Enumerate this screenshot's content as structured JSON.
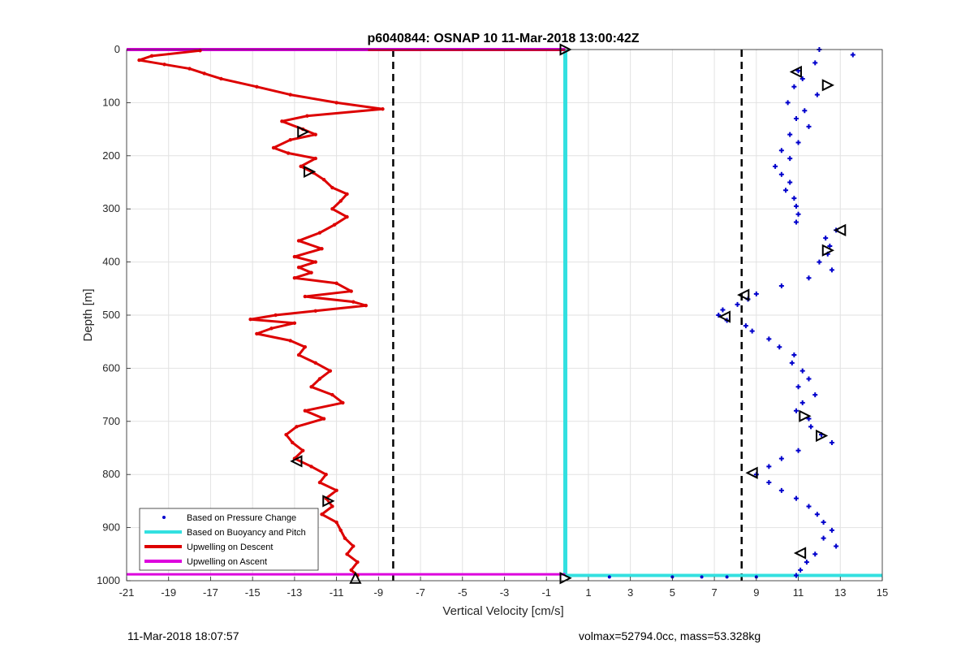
{
  "chart_data": {
    "type": "scatter",
    "title": "p6040844: OSNAP 10 11-Mar-2018 13:00:42Z",
    "xlabel": "Vertical Velocity [cm/s]",
    "ylabel": "Depth [m]",
    "xlim": [
      -21,
      15
    ],
    "ylim": [
      0,
      1000
    ],
    "y_reversed": true,
    "grid": true,
    "xticks": [
      -21,
      -19,
      -17,
      -15,
      -13,
      -11,
      -9,
      -7,
      -5,
      -3,
      -1,
      1,
      3,
      5,
      7,
      9,
      11,
      13,
      15
    ],
    "yticks": [
      0,
      100,
      200,
      300,
      400,
      500,
      600,
      700,
      800,
      900,
      1000
    ],
    "legend_position": "bottom-left",
    "legend": [
      {
        "label": "Based on Pressure Change",
        "color": "#0000cc",
        "style": "dot"
      },
      {
        "label": "Based on Buoyancy and Pitch",
        "color": "#33e0e0",
        "style": "line"
      },
      {
        "label": "Upwelling on Descent",
        "color": "#dd0000",
        "style": "line"
      },
      {
        "label": "Upwelling on Ascent",
        "color": "#dd00dd",
        "style": "line"
      }
    ],
    "reference_lines": [
      {
        "x": -8.3,
        "style": "dashed",
        "color": "#000000"
      },
      {
        "x": 8.3,
        "style": "dashed",
        "color": "#000000"
      }
    ],
    "series": [
      {
        "name": "Upwelling on Descent",
        "color": "#dd0000",
        "depth": [
          2,
          12,
          20,
          28,
          36,
          45,
          55,
          70,
          85,
          100,
          112,
          125,
          135,
          150,
          160,
          170,
          185,
          195,
          205,
          220,
          232,
          245,
          260,
          272,
          285,
          300,
          315,
          330,
          345,
          360,
          375,
          390,
          400,
          410,
          420,
          430,
          440,
          455,
          465,
          475,
          482,
          492,
          500,
          508,
          515,
          525,
          535,
          548,
          560,
          575,
          590,
          605,
          620,
          635,
          650,
          665,
          680,
          695,
          710,
          725,
          740,
          755,
          770,
          785,
          800,
          815,
          830,
          845,
          860,
          875,
          890,
          905,
          920,
          935,
          950,
          965,
          980,
          990
        ],
        "velocity": [
          -17.5,
          -19.8,
          -20.4,
          -19.2,
          -18.0,
          -17.3,
          -16.5,
          -14.8,
          -13.2,
          -11.0,
          -8.8,
          -12.4,
          -13.6,
          -12.6,
          -12.0,
          -13.2,
          -14.0,
          -13.3,
          -12.0,
          -12.7,
          -12.1,
          -11.6,
          -11.2,
          -10.5,
          -10.8,
          -11.2,
          -10.5,
          -11.1,
          -11.8,
          -12.8,
          -11.7,
          -13.0,
          -12.0,
          -12.8,
          -12.2,
          -13.0,
          -11.0,
          -10.3,
          -12.5,
          -10.2,
          -9.6,
          -12.0,
          -13.9,
          -15.1,
          -13.0,
          -14.1,
          -14.8,
          -13.2,
          -12.5,
          -12.8,
          -12.0,
          -11.3,
          -11.8,
          -12.2,
          -11.2,
          -10.7,
          -12.5,
          -11.6,
          -12.9,
          -13.4,
          -13.1,
          -12.6,
          -13.0,
          -12.2,
          -11.5,
          -11.8,
          -11.0,
          -11.5,
          -11.2,
          -11.7,
          -11.0,
          -10.8,
          -10.6,
          -10.2,
          -10.5,
          -10.0,
          -10.3,
          -10.0
        ]
      },
      {
        "name": "Based on Pressure Change",
        "color": "#0000cc",
        "depth": [
          0,
          10,
          25,
          40,
          55,
          70,
          85,
          100,
          115,
          130,
          145,
          160,
          175,
          190,
          205,
          220,
          235,
          250,
          265,
          280,
          295,
          310,
          325,
          340,
          355,
          370,
          385,
          400,
          415,
          430,
          445,
          460,
          470,
          480,
          490,
          500,
          510,
          520,
          530,
          545,
          560,
          575,
          590,
          605,
          620,
          635,
          650,
          665,
          680,
          695,
          710,
          725,
          740,
          755,
          770,
          785,
          800,
          815,
          830,
          845,
          860,
          875,
          890,
          905,
          920,
          935,
          950,
          965,
          980,
          990
        ],
        "velocity": [
          12.0,
          13.6,
          11.8,
          11.0,
          11.2,
          10.8,
          11.9,
          10.5,
          11.3,
          10.9,
          11.5,
          10.6,
          11.0,
          10.2,
          10.6,
          9.9,
          10.2,
          10.6,
          10.4,
          10.8,
          10.9,
          11.0,
          10.9,
          12.8,
          12.3,
          12.5,
          12.4,
          12.0,
          12.6,
          11.5,
          10.2,
          9.0,
          8.6,
          8.1,
          7.4,
          7.2,
          7.6,
          8.5,
          8.8,
          9.6,
          10.1,
          10.8,
          10.7,
          11.2,
          11.5,
          11.0,
          11.8,
          11.2,
          10.9,
          11.5,
          11.6,
          12.1,
          12.6,
          11.0,
          10.2,
          9.6,
          9.0,
          9.6,
          10.2,
          10.9,
          11.5,
          11.9,
          12.2,
          12.6,
          12.2,
          12.8,
          11.8,
          11.4,
          11.1,
          10.9
        ]
      },
      {
        "name": "Based on Buoyancy and Pitch",
        "color": "#33e0e0",
        "depth": [
          0,
          990
        ],
        "velocity": [
          -0.1,
          -0.1
        ]
      },
      {
        "name": "Upwelling on Ascent",
        "color": "#dd00dd",
        "depth": [
          0,
          988
        ],
        "velocity": [
          -21,
          -21
        ]
      }
    ],
    "markers": [
      {
        "x": -12.6,
        "y": 155,
        "dir": "right"
      },
      {
        "x": -12.3,
        "y": 230,
        "dir": "right"
      },
      {
        "x": -12.9,
        "y": 775,
        "dir": "left"
      },
      {
        "x": -11.4,
        "y": 850,
        "dir": "right"
      },
      {
        "x": -10.1,
        "y": 995,
        "dir": "up"
      },
      {
        "x": -0.1,
        "y": 0,
        "dir": "right"
      },
      {
        "x": -0.1,
        "y": 995,
        "dir": "right"
      },
      {
        "x": 10.9,
        "y": 42,
        "dir": "left"
      },
      {
        "x": 12.4,
        "y": 67,
        "dir": "right"
      },
      {
        "x": 13.0,
        "y": 340,
        "dir": "left"
      },
      {
        "x": 12.4,
        "y": 378,
        "dir": "right"
      },
      {
        "x": 8.4,
        "y": 462,
        "dir": "left"
      },
      {
        "x": 7.5,
        "y": 503,
        "dir": "left"
      },
      {
        "x": 11.3,
        "y": 690,
        "dir": "right"
      },
      {
        "x": 12.1,
        "y": 727,
        "dir": "right"
      },
      {
        "x": 8.8,
        "y": 797,
        "dir": "left"
      },
      {
        "x": 11.1,
        "y": 948,
        "dir": "left"
      }
    ]
  },
  "footer": {
    "timestamp": "11-Mar-2018 18:07:57",
    "info": "volmax=52794.0cc, mass=53.328kg"
  }
}
